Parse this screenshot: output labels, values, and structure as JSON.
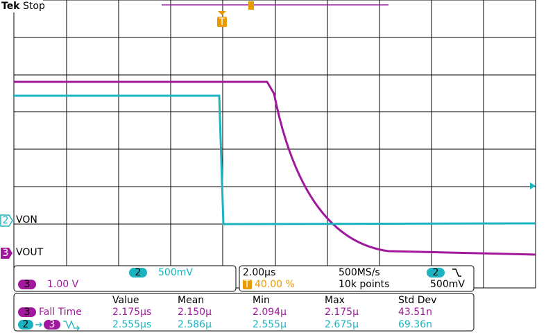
{
  "header": {
    "brand": "Tek",
    "status": "Stop"
  },
  "trigger_marker": "T",
  "channels": [
    {
      "number": "2",
      "label": "VON",
      "scale": "500mV"
    },
    {
      "number": "3",
      "label": "VOUT",
      "scale": "1.00 V"
    }
  ],
  "timebase": {
    "scale": "2.00µs",
    "sample_rate": "500MS/s",
    "trigger_position": "40.00 %",
    "record_length": "10k points",
    "trigger_channel": "2",
    "trigger_level": "500mV"
  },
  "measurements": {
    "columns": [
      "Value",
      "Mean",
      "Min",
      "Max",
      "Std Dev"
    ],
    "rows": [
      {
        "source": "3",
        "name": "Fall Time",
        "values": [
          "2.175µs",
          "2.150µ",
          "2.094µ",
          "2.175µ",
          "43.51n"
        ]
      },
      {
        "source": "2",
        "target": "3",
        "values": [
          "2.555µs",
          "2.586µ",
          "2.555µ",
          "2.675µ",
          "69.36n"
        ]
      }
    ]
  }
}
